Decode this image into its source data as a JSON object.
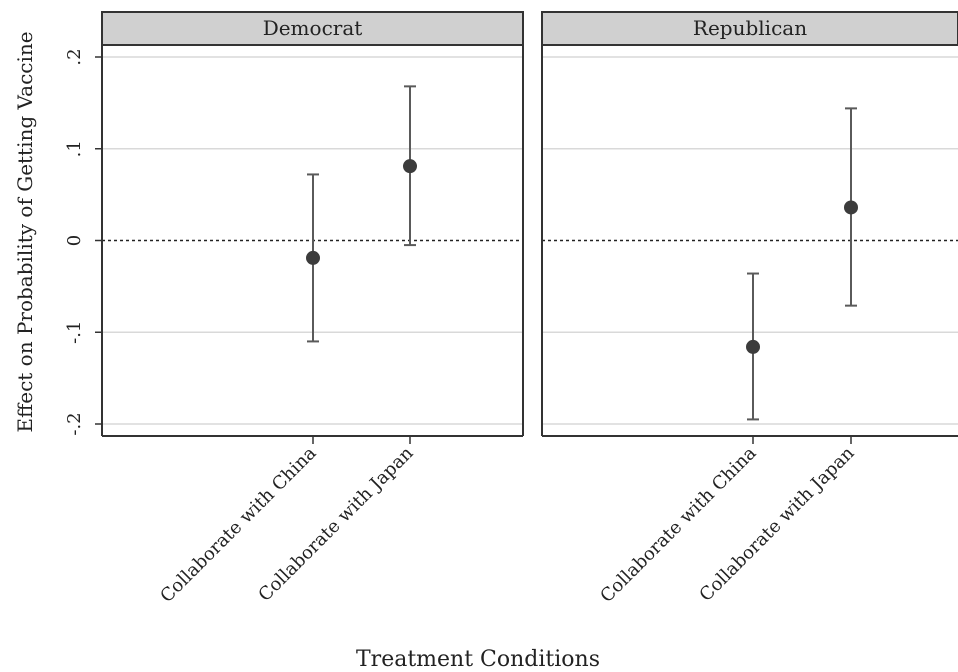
{
  "chart_data": {
    "type": "scatter",
    "ylabel": "Effect on Probability of Getting Vaccine",
    "xlabel": "Treatment Conditions",
    "ylim": [
      -0.2,
      0.2
    ],
    "yticks": [
      -0.2,
      -0.1,
      0,
      0.1,
      0.2
    ],
    "ytick_labels": [
      "-.2",
      "-.1",
      "0",
      ".1",
      ".2"
    ],
    "reference_line": 0,
    "grid": true,
    "categories": [
      "Collaborate with China",
      "Collaborate with Japan"
    ],
    "panels": [
      {
        "title": "Democrat",
        "points": [
          {
            "category": "Collaborate with China",
            "estimate": -0.019,
            "ci_low": -0.11,
            "ci_high": 0.072
          },
          {
            "category": "Collaborate with Japan",
            "estimate": 0.081,
            "ci_low": -0.005,
            "ci_high": 0.168
          }
        ]
      },
      {
        "title": "Republican",
        "points": [
          {
            "category": "Collaborate with China",
            "estimate": -0.116,
            "ci_low": -0.195,
            "ci_high": -0.036
          },
          {
            "category": "Collaborate with Japan",
            "estimate": 0.036,
            "ci_low": -0.071,
            "ci_high": 0.144
          }
        ]
      }
    ]
  },
  "colors": {
    "marker": "#3c3c3c",
    "errorbar": "#5a5a5a",
    "header_fill": "#d0d0d0",
    "gridline": "#d9d9d9",
    "frame": "#333333"
  }
}
